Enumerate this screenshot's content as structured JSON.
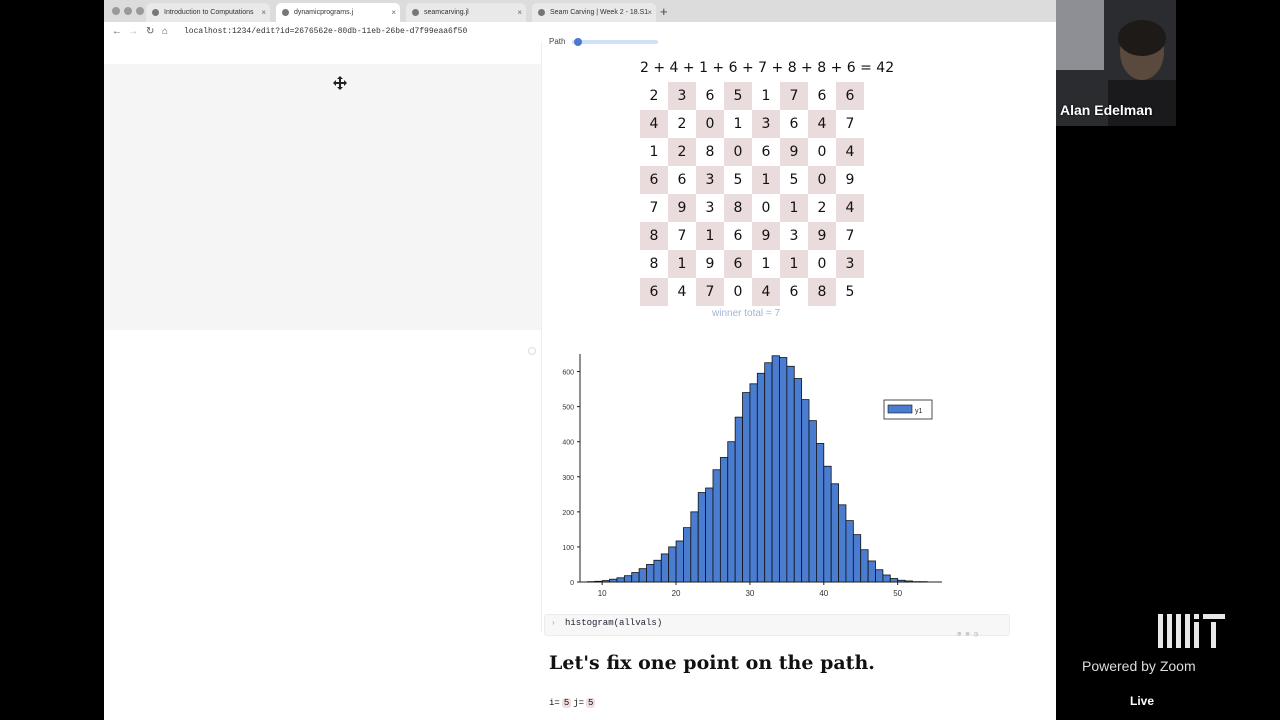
{
  "browser": {
    "tabs": [
      {
        "label": "Introduction to Computations",
        "active": false
      },
      {
        "label": "dynamicprograms.j",
        "active": true
      },
      {
        "label": "seamcarving.jl",
        "active": false
      },
      {
        "label": "Seam Carving | Week 2 - 18.S1",
        "active": false
      }
    ],
    "new_tab": "+",
    "url": "localhost:1234/edit?id=2676562e-80db-11eb-26be-d7f99eaa6f50",
    "nav_back": "←",
    "nav_forward": "→",
    "nav_reload": "↻",
    "nav_home": "⌂",
    "tab_close": "×"
  },
  "notebook": {
    "path_label": "Path",
    "path_equation": "2 + 4 + 1 + 6 + 7 + 8 + 8 + 6 = 42",
    "grid": [
      [
        2,
        3,
        6,
        5,
        1,
        7,
        6,
        6
      ],
      [
        4,
        2,
        0,
        1,
        3,
        6,
        4,
        7
      ],
      [
        1,
        2,
        8,
        0,
        6,
        9,
        0,
        4
      ],
      [
        6,
        6,
        3,
        5,
        1,
        5,
        0,
        9
      ],
      [
        7,
        9,
        3,
        8,
        0,
        1,
        2,
        4
      ],
      [
        8,
        7,
        1,
        6,
        9,
        3,
        9,
        7
      ],
      [
        8,
        1,
        9,
        6,
        1,
        1,
        0,
        3
      ],
      [
        6,
        4,
        7,
        0,
        4,
        6,
        8,
        5
      ]
    ],
    "path_columns": [
      0,
      0,
      0,
      0,
      0,
      0,
      0,
      0
    ],
    "winner_path_columns": [
      4,
      3,
      3,
      4,
      4,
      5,
      4,
      3
    ],
    "winner_label": "winner total = 7",
    "code_cell": "histogram(allvals)",
    "cell_meta": "⊕ ⊗ ◷",
    "heading": "Let's fix one point on the path.",
    "assign_prefix": "i=",
    "assign_i": "5",
    "assign_mid": "j=",
    "assign_j": "5"
  },
  "chart_data": {
    "type": "bar",
    "title": "",
    "xlabel": "",
    "ylabel": "",
    "xlim": [
      7,
      56
    ],
    "ylim": [
      0,
      650
    ],
    "x_ticks": [
      10,
      20,
      30,
      40,
      50
    ],
    "y_ticks": [
      0,
      100,
      200,
      300,
      400,
      500,
      600
    ],
    "bin_width": 1,
    "bin_starts": [
      8,
      9,
      10,
      11,
      12,
      13,
      14,
      15,
      16,
      17,
      18,
      19,
      20,
      21,
      22,
      23,
      24,
      25,
      26,
      27,
      28,
      29,
      30,
      31,
      32,
      33,
      34,
      35,
      36,
      37,
      38,
      39,
      40,
      41,
      42,
      43,
      44,
      45,
      46,
      47,
      48,
      49,
      50,
      51,
      52,
      53,
      54
    ],
    "series": [
      {
        "name": "y1",
        "color": "#4a7ccf",
        "values": [
          1,
          2,
          4,
          8,
          12,
          18,
          27,
          38,
          50,
          62,
          80,
          100,
          117,
          155,
          200,
          255,
          268,
          320,
          355,
          400,
          470,
          540,
          565,
          595,
          625,
          645,
          640,
          615,
          580,
          520,
          460,
          395,
          330,
          280,
          220,
          175,
          135,
          92,
          60,
          35,
          20,
          10,
          5,
          3,
          1,
          1,
          0
        ]
      }
    ],
    "legend": {
      "position": "top-right",
      "entries": [
        "y1"
      ]
    },
    "grid": false
  },
  "zoom": {
    "participant_name": "Alan Edelman",
    "powered_by": "Powered by Zoom",
    "live_label": "Live"
  }
}
